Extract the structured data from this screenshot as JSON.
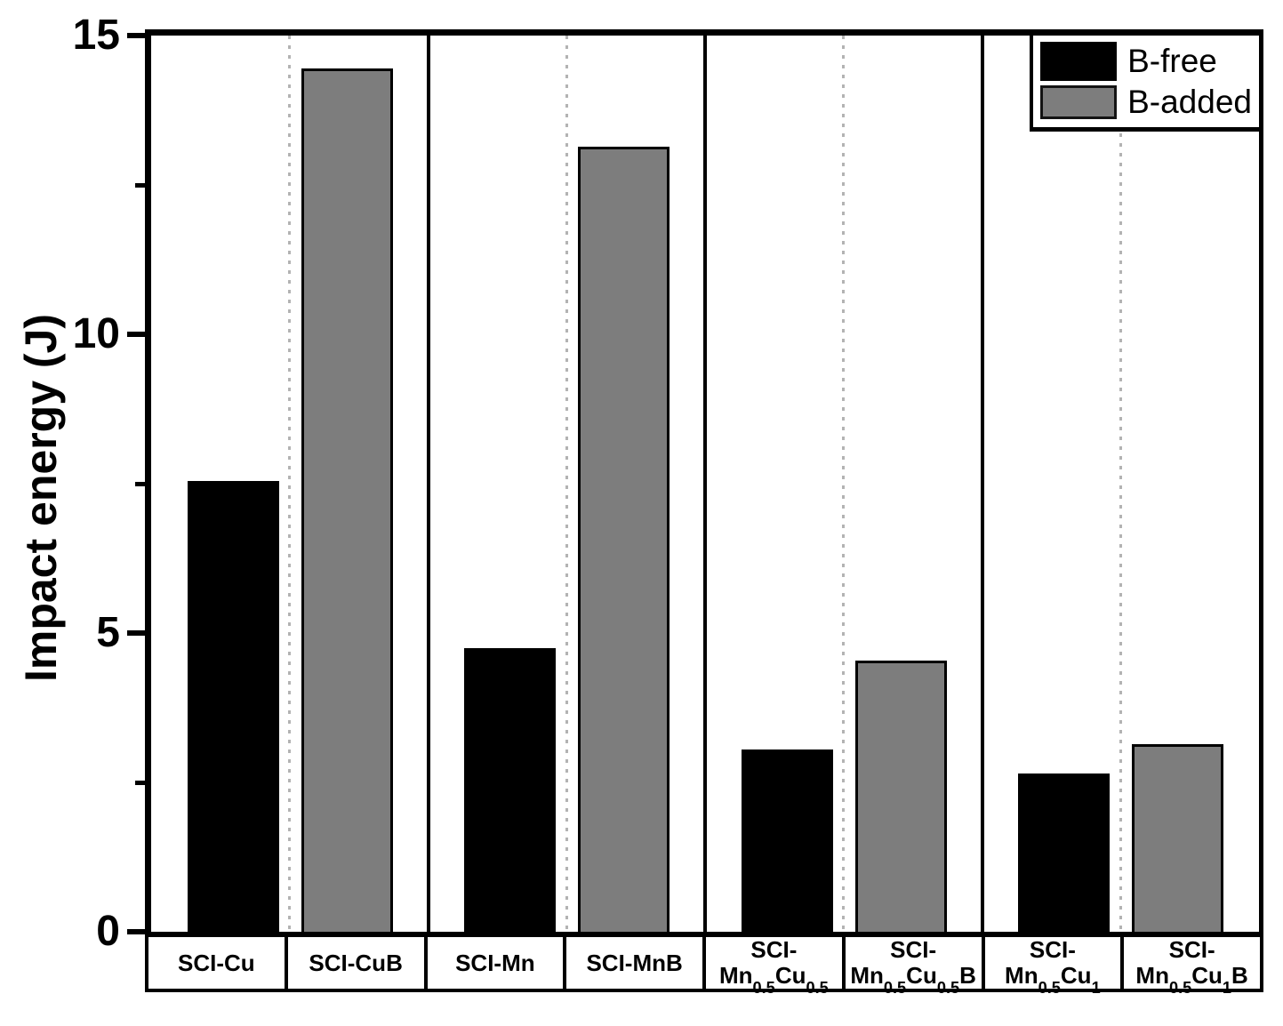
{
  "chart_data": {
    "type": "bar",
    "title": "",
    "xlabel": "",
    "ylabel": "Impact energy (J)",
    "ylim": [
      0,
      15
    ],
    "yticks_major": [
      0,
      5,
      10,
      15
    ],
    "yticks_minor": [
      2.5,
      7.5,
      12.5
    ],
    "grid": "off",
    "legend": {
      "position": "top-right",
      "entries": [
        {
          "label": "B-free",
          "color": "#000000"
        },
        {
          "label": "B-added",
          "color": "#7d7d7d"
        }
      ]
    },
    "series_colors": {
      "B-free": "#000000",
      "B-added": "#7d7d7d"
    },
    "separator_colors": {
      "panel_divider": "#000000",
      "slot_dotted": "#b3b3b3"
    },
    "groups": [
      {
        "bars": [
          {
            "category": "SCI-Cu",
            "display": [
              "SCI-Cu"
            ],
            "series": "B-free",
            "value": 7.5
          },
          {
            "category": "SCI-CuB",
            "display": [
              "SCI-CuB"
            ],
            "series": "B-added",
            "value": 14.4
          }
        ]
      },
      {
        "bars": [
          {
            "category": "SCI-Mn",
            "display": [
              "SCI-Mn"
            ],
            "series": "B-free",
            "value": 4.7
          },
          {
            "category": "SCI-MnB",
            "display": [
              "SCI-MnB"
            ],
            "series": "B-added",
            "value": 13.1
          }
        ]
      },
      {
        "bars": [
          {
            "category": "SCI-Mn0.5Cu0.5",
            "display": [
              "SCI-",
              "Mn_{0.5}Cu_{0.5}"
            ],
            "series": "B-free",
            "value": 3.0
          },
          {
            "category": "SCI-Mn0.5Cu0.5B",
            "display": [
              "SCI-",
              "Mn_{0.5}Cu_{0.5}B"
            ],
            "series": "B-added",
            "value": 4.5
          }
        ]
      },
      {
        "bars": [
          {
            "category": "SCI-Mn0.5Cu1",
            "display": [
              "SCI-",
              "Mn_{0.5}Cu_{1}"
            ],
            "series": "B-free",
            "value": 2.6
          },
          {
            "category": "SCI-Mn0.5Cu1B",
            "display": [
              "SCI-",
              "Mn_{0.5}Cu_{1}B"
            ],
            "series": "B-added",
            "value": 3.1
          }
        ]
      }
    ]
  }
}
